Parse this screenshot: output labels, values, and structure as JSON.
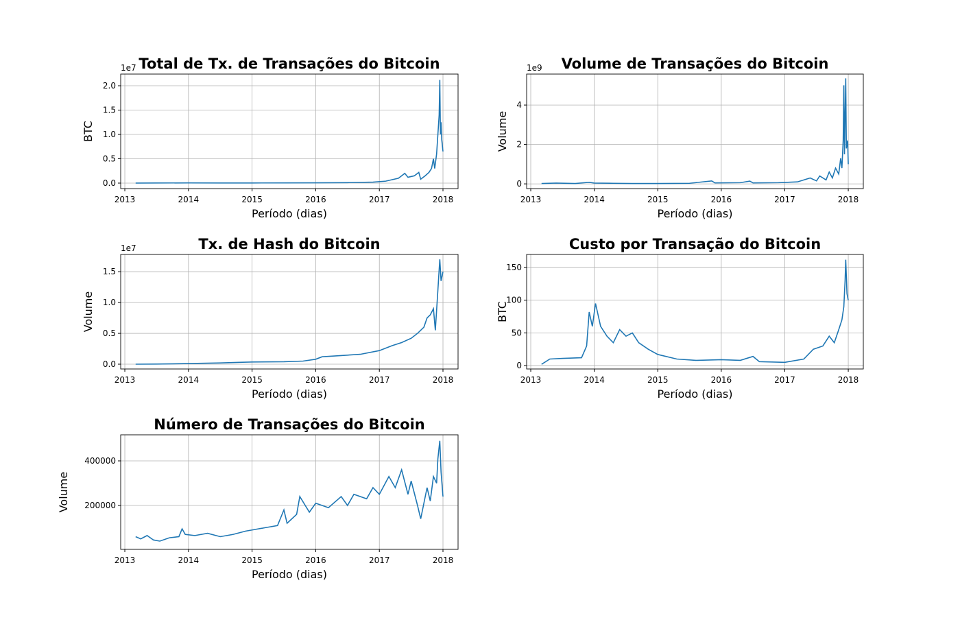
{
  "chart_data": [
    {
      "type": "line",
      "title": "Total de Tx. de Transações do Bitcoin",
      "xlabel": "Período (dias)",
      "ylabel": "BTC",
      "y_offset_label": "1e7",
      "color": "#1f77b4",
      "grid": true,
      "xlim": [
        2012.935,
        2018.237
      ],
      "xticks": [
        2013,
        2014,
        2015,
        2016,
        2017,
        2018
      ],
      "ylim": [
        -0.113,
        2.24
      ],
      "yticks": [
        {
          "value": 0,
          "label": "0.0"
        },
        {
          "value": 0.5,
          "label": "0.5"
        },
        {
          "value": 1,
          "label": "1.0"
        },
        {
          "value": 1.5,
          "label": "1.5"
        },
        {
          "value": 2,
          "label": "2.0"
        }
      ],
      "x": [
        2013.17,
        2013.5,
        2014.0,
        2014.5,
        2015.0,
        2015.5,
        2016.0,
        2016.5,
        2016.9,
        2017.1,
        2017.3,
        2017.4,
        2017.45,
        2017.55,
        2017.62,
        2017.65,
        2017.72,
        2017.78,
        2017.82,
        2017.85,
        2017.87,
        2017.9,
        2017.92,
        2017.94,
        2017.95,
        2017.96,
        2017.97,
        2017.98,
        2018.0
      ],
      "values": [
        0.001,
        0.002,
        0.004,
        0.003,
        0.003,
        0.004,
        0.006,
        0.01,
        0.02,
        0.04,
        0.1,
        0.2,
        0.12,
        0.15,
        0.22,
        0.08,
        0.15,
        0.22,
        0.3,
        0.5,
        0.3,
        0.6,
        1.0,
        1.4,
        2.12,
        1.0,
        1.25,
        0.9,
        0.65
      ]
    },
    {
      "type": "line",
      "title": "Volume de Transações do Bitcoin",
      "xlabel": "Período (dias)",
      "ylabel": "Volume",
      "y_offset_label": "1e9",
      "color": "#1f77b4",
      "grid": true,
      "xlim": [
        2012.935,
        2018.237
      ],
      "xticks": [
        2013,
        2014,
        2015,
        2016,
        2017,
        2018
      ],
      "ylim": [
        -0.24,
        5.57
      ],
      "yticks": [
        0,
        2,
        4
      ],
      "x": [
        2013.17,
        2013.4,
        2013.7,
        2013.92,
        2014.0,
        2014.3,
        2014.6,
        2015.0,
        2015.5,
        2015.85,
        2015.9,
        2016.3,
        2016.45,
        2016.5,
        2016.9,
        2017.2,
        2017.4,
        2017.5,
        2017.55,
        2017.65,
        2017.7,
        2017.75,
        2017.8,
        2017.85,
        2017.88,
        2017.9,
        2017.92,
        2017.93,
        2017.94,
        2017.96,
        2017.97,
        2017.99,
        2018.0
      ],
      "values": [
        0.02,
        0.04,
        0.02,
        0.08,
        0.04,
        0.03,
        0.02,
        0.02,
        0.03,
        0.15,
        0.05,
        0.06,
        0.14,
        0.05,
        0.06,
        0.1,
        0.3,
        0.15,
        0.4,
        0.2,
        0.6,
        0.3,
        0.8,
        0.5,
        1.3,
        0.8,
        2.2,
        5.0,
        1.5,
        5.35,
        1.8,
        2.2,
        1.0
      ]
    },
    {
      "type": "line",
      "title": "Tx. de Hash do Bitcoin",
      "xlabel": "Período (dias)",
      "ylabel": "Volume",
      "y_offset_label": "1e7",
      "color": "#1f77b4",
      "grid": true,
      "xlim": [
        2012.935,
        2018.237
      ],
      "xticks": [
        2013,
        2014,
        2015,
        2016,
        2017,
        2018
      ],
      "ylim": [
        -0.078,
        1.78
      ],
      "yticks": [
        {
          "value": 0,
          "label": "0.0"
        },
        {
          "value": 0.5,
          "label": "0.5"
        },
        {
          "value": 1,
          "label": "1.0"
        },
        {
          "value": 1.5,
          "label": "1.5"
        }
      ],
      "x": [
        2013.17,
        2013.5,
        2014.0,
        2014.5,
        2014.8,
        2015.0,
        2015.5,
        2015.8,
        2016.0,
        2016.1,
        2016.4,
        2016.7,
        2017.0,
        2017.2,
        2017.35,
        2017.5,
        2017.6,
        2017.7,
        2017.75,
        2017.8,
        2017.85,
        2017.88,
        2017.92,
        2017.95,
        2017.97,
        2018.0
      ],
      "values": [
        0.0,
        0.002,
        0.01,
        0.02,
        0.03,
        0.035,
        0.04,
        0.05,
        0.08,
        0.12,
        0.14,
        0.16,
        0.22,
        0.3,
        0.35,
        0.42,
        0.5,
        0.6,
        0.75,
        0.8,
        0.9,
        0.55,
        1.2,
        1.7,
        1.35,
        1.5
      ]
    },
    {
      "type": "line",
      "title": "Custo por Transação do Bitcoin",
      "xlabel": "Período (dias)",
      "ylabel": "BTC",
      "color": "#1f77b4",
      "grid": true,
      "xlim": [
        2012.935,
        2018.237
      ],
      "xticks": [
        2013,
        2014,
        2015,
        2016,
        2017,
        2018
      ],
      "ylim": [
        -5.2,
        170
      ],
      "yticks": [
        0,
        50,
        100,
        150
      ],
      "x": [
        2013.17,
        2013.3,
        2013.5,
        2013.8,
        2013.88,
        2013.92,
        2013.97,
        2014.02,
        2014.1,
        2014.2,
        2014.3,
        2014.4,
        2014.5,
        2014.6,
        2014.7,
        2014.85,
        2015.0,
        2015.3,
        2015.6,
        2016.0,
        2016.3,
        2016.5,
        2016.6,
        2017.0,
        2017.3,
        2017.45,
        2017.6,
        2017.7,
        2017.78,
        2017.85,
        2017.9,
        2017.93,
        2017.95,
        2017.96,
        2017.98,
        2018.0
      ],
      "values": [
        2,
        10,
        11,
        12,
        30,
        82,
        60,
        95,
        60,
        45,
        35,
        55,
        45,
        50,
        35,
        25,
        17,
        10,
        8,
        9,
        8,
        14,
        6,
        5,
        10,
        25,
        30,
        45,
        35,
        55,
        70,
        90,
        130,
        162,
        110,
        100
      ]
    },
    {
      "type": "line",
      "title": "Número de Transações do Bitcoin",
      "xlabel": "Período (dias)",
      "ylabel": "Volume",
      "color": "#1f77b4",
      "grid": true,
      "xlim": [
        2012.935,
        2018.237
      ],
      "xticks": [
        2013,
        2014,
        2015,
        2016,
        2017,
        2018
      ],
      "ylim": [
        3000,
        517000
      ],
      "yticks": [
        200000,
        400000
      ],
      "x": [
        2013.17,
        2013.25,
        2013.35,
        2013.45,
        2013.55,
        2013.7,
        2013.85,
        2013.9,
        2013.95,
        2014.1,
        2014.3,
        2014.5,
        2014.7,
        2014.9,
        2015.0,
        2015.2,
        2015.4,
        2015.5,
        2015.55,
        2015.7,
        2015.75,
        2015.9,
        2016.0,
        2016.2,
        2016.4,
        2016.5,
        2016.6,
        2016.8,
        2016.9,
        2017.0,
        2017.15,
        2017.25,
        2017.35,
        2017.45,
        2017.5,
        2017.6,
        2017.65,
        2017.75,
        2017.8,
        2017.85,
        2017.9,
        2017.92,
        2017.95,
        2017.97,
        2018.0
      ],
      "values": [
        60000,
        50000,
        65000,
        45000,
        40000,
        55000,
        60000,
        95000,
        70000,
        65000,
        75000,
        60000,
        70000,
        85000,
        90000,
        100000,
        110000,
        180000,
        120000,
        160000,
        240000,
        170000,
        210000,
        190000,
        240000,
        200000,
        250000,
        230000,
        280000,
        250000,
        330000,
        280000,
        360000,
        250000,
        310000,
        200000,
        140000,
        280000,
        220000,
        330000,
        300000,
        410000,
        490000,
        350000,
        240000
      ]
    }
  ]
}
